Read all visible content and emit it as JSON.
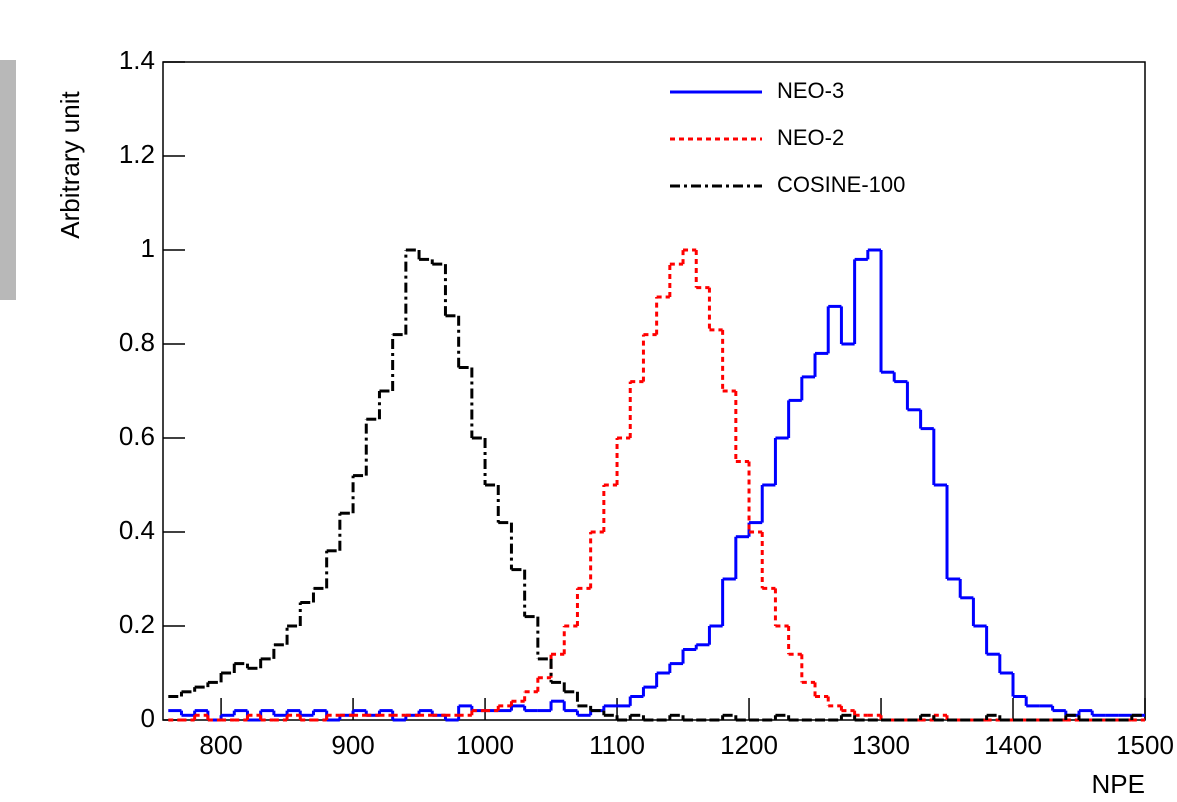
{
  "chart_data": {
    "type": "histogram",
    "x_label": "NPE",
    "y_label": "Arbitrary unit",
    "bins": [
      760,
      770,
      780,
      790,
      800,
      810,
      820,
      830,
      840,
      850,
      860,
      870,
      880,
      890,
      900,
      910,
      920,
      930,
      940,
      950,
      960,
      970,
      980,
      990,
      1000,
      1010,
      1020,
      1030,
      1040,
      1050,
      1060,
      1070,
      1080,
      1090,
      1100,
      1110,
      1120,
      1130,
      1140,
      1150,
      1160,
      1170,
      1180,
      1190,
      1200,
      1210,
      1220,
      1230,
      1240,
      1250,
      1260,
      1270,
      1280,
      1290,
      1300,
      1310,
      1320,
      1330,
      1340,
      1350,
      1360,
      1370,
      1380,
      1390,
      1400,
      1410,
      1420,
      1430,
      1440,
      1450,
      1460,
      1470,
      1480,
      1490,
      1500
    ],
    "series": [
      {
        "name": "NEO-3",
        "color": "#0000ff",
        "dash": "solid",
        "values": [
          0.02,
          0.01,
          0.02,
          0,
          0.01,
          0.02,
          0,
          0.02,
          0.01,
          0.02,
          0.01,
          0.02,
          0,
          0.01,
          0.02,
          0.01,
          0.02,
          0,
          0.01,
          0.02,
          0.01,
          0,
          0.03,
          0.02,
          0.02,
          0.02,
          0.03,
          0.02,
          0.02,
          0.04,
          0.02,
          0.01,
          0.02,
          0.03,
          0.03,
          0.05,
          0.07,
          0.1,
          0.12,
          0.15,
          0.16,
          0.2,
          0.3,
          0.39,
          0.42,
          0.5,
          0.6,
          0.68,
          0.73,
          0.78,
          0.88,
          0.8,
          0.98,
          1.0,
          0.74,
          0.72,
          0.66,
          0.62,
          0.5,
          0.3,
          0.26,
          0.2,
          0.14,
          0.1,
          0.05,
          0.03,
          0.03,
          0.02,
          0.01,
          0.02,
          0.01,
          0.01,
          0.01,
          0.01
        ]
      },
      {
        "name": "NEO-2",
        "color": "#ff0000",
        "dash": "dotted",
        "values": [
          0,
          0,
          0.01,
          0,
          0,
          0,
          0.01,
          0,
          0,
          0.01,
          0,
          0,
          0.01,
          0.01,
          0.01,
          0.01,
          0.01,
          0.01,
          0.01,
          0.01,
          0.01,
          0.01,
          0.01,
          0.02,
          0.02,
          0.03,
          0.04,
          0.06,
          0.09,
          0.14,
          0.2,
          0.28,
          0.4,
          0.5,
          0.6,
          0.72,
          0.82,
          0.9,
          0.97,
          1.0,
          0.92,
          0.83,
          0.7,
          0.55,
          0.4,
          0.28,
          0.2,
          0.14,
          0.08,
          0.05,
          0.03,
          0.02,
          0.01,
          0.01,
          0,
          0,
          0,
          0,
          0.01,
          0,
          0,
          0,
          0,
          0,
          0,
          0,
          0,
          0,
          0,
          0,
          0,
          0,
          0,
          0
        ]
      },
      {
        "name": "COSINE-100",
        "color": "#000000",
        "dash": "dashdot",
        "values": [
          0.05,
          0.06,
          0.07,
          0.08,
          0.1,
          0.12,
          0.11,
          0.13,
          0.16,
          0.2,
          0.25,
          0.28,
          0.36,
          0.44,
          0.52,
          0.64,
          0.7,
          0.82,
          1.0,
          0.98,
          0.97,
          0.86,
          0.75,
          0.6,
          0.5,
          0.42,
          0.32,
          0.22,
          0.13,
          0.08,
          0.06,
          0.03,
          0.02,
          0.01,
          0,
          0.01,
          0,
          0,
          0.01,
          0,
          0,
          0,
          0.01,
          0,
          0,
          0,
          0.01,
          0,
          0,
          0,
          0,
          0.01,
          0,
          0,
          0,
          0,
          0,
          0.01,
          0,
          0,
          0,
          0,
          0.01,
          0,
          0,
          0,
          0,
          0,
          0.01,
          0,
          0,
          0,
          0,
          0.01
        ]
      }
    ],
    "xlim": [
      756,
      1500
    ],
    "xticks": [
      800,
      900,
      1000,
      1100,
      1200,
      1300,
      1400,
      1500
    ],
    "ylim": [
      0,
      1.4
    ],
    "yticks": [
      0,
      0.2,
      0.4,
      0.6,
      0.8,
      1,
      1.2,
      1.4
    ],
    "legend": "top-right"
  }
}
